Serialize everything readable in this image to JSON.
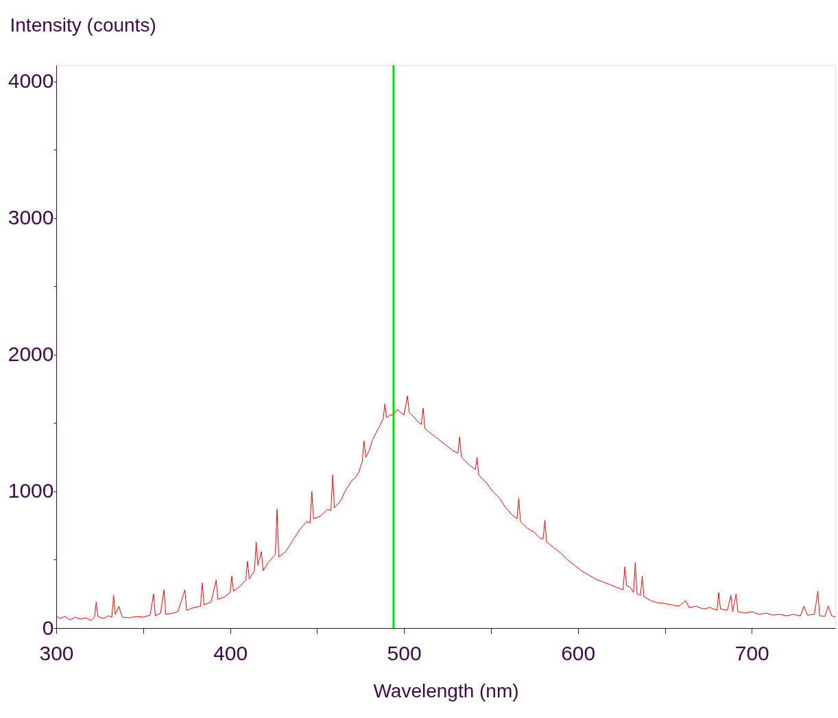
{
  "chart_data": {
    "type": "line",
    "ylabel": "Intensity (counts)",
    "xlabel": "Wavelength (nm)",
    "xlim": [
      300,
      748
    ],
    "ylim": [
      0,
      4120
    ],
    "xticks": [
      300,
      {
        "value": 350,
        "label": null
      },
      400,
      {
        "value": 450,
        "label": null
      },
      500,
      {
        "value": 550,
        "label": null
      },
      600,
      {
        "value": 650,
        "label": null
      },
      700
    ],
    "yticks": [
      0,
      {
        "value": 500,
        "label": null
      },
      1000,
      {
        "value": 1500,
        "label": null
      },
      2000,
      {
        "value": 2500,
        "label": null
      },
      3000,
      {
        "value": 3500,
        "label": null
      },
      4000
    ],
    "grid": false,
    "marker": "none",
    "line_style": "solid",
    "ref_lines": [
      {
        "axis": "x",
        "value": 494,
        "color": "#00e000"
      }
    ],
    "series": [
      {
        "color": "#ff0000",
        "x": [
          300,
          302,
          305,
          308,
          311,
          314,
          317,
          320,
          322,
          323,
          324,
          327,
          330,
          332,
          333,
          334,
          336,
          338,
          342,
          346,
          350,
          354,
          356,
          357,
          360,
          362,
          363,
          367,
          370,
          374,
          375,
          379,
          383,
          384,
          385,
          389,
          392,
          393,
          397,
          400,
          401,
          402,
          406,
          409,
          410,
          411,
          414,
          415,
          416,
          418,
          419,
          422,
          426,
          427,
          428,
          432,
          436,
          440,
          444,
          446,
          447,
          448,
          452,
          456,
          458,
          459,
          460,
          464,
          466,
          468,
          470,
          472,
          474,
          476,
          477,
          478,
          480,
          482,
          484,
          486,
          488,
          489,
          490,
          492,
          494,
          496,
          498,
          500,
          502,
          503,
          506,
          508,
          510,
          511,
          512,
          516,
          520,
          524,
          528,
          531,
          532,
          533,
          537,
          541,
          542,
          543,
          547,
          551,
          555,
          558,
          562,
          565,
          566,
          567,
          571,
          575,
          578,
          580,
          581,
          582,
          586,
          590,
          594,
          598,
          602,
          606,
          610,
          614,
          618,
          622,
          626,
          627,
          628,
          630,
          632,
          633,
          634,
          636,
          637,
          638,
          642,
          646,
          650,
          654,
          658,
          662,
          664,
          668,
          672,
          676,
          680,
          681,
          682,
          686,
          688,
          689,
          691,
          692,
          696,
          700,
          704,
          708,
          712,
          716,
          720,
          724,
          728,
          730,
          732,
          736,
          738,
          739,
          742,
          744,
          746,
          748
        ],
        "values": [
          90,
          70,
          85,
          60,
          80,
          65,
          75,
          55,
          80,
          190,
          85,
          70,
          90,
          80,
          240,
          100,
          160,
          80,
          75,
          85,
          80,
          95,
          250,
          90,
          110,
          280,
          100,
          110,
          120,
          280,
          130,
          150,
          160,
          330,
          170,
          190,
          350,
          210,
          230,
          260,
          380,
          270,
          310,
          350,
          490,
          360,
          420,
          630,
          460,
          560,
          420,
          480,
          540,
          870,
          520,
          560,
          640,
          720,
          780,
          770,
          1000,
          800,
          820,
          870,
          860,
          1120,
          880,
          940,
          1000,
          1040,
          1080,
          1100,
          1140,
          1220,
          1370,
          1250,
          1300,
          1380,
          1430,
          1480,
          1530,
          1640,
          1540,
          1560,
          1560,
          1600,
          1580,
          1560,
          1700,
          1580,
          1540,
          1510,
          1490,
          1610,
          1460,
          1420,
          1380,
          1340,
          1300,
          1280,
          1400,
          1250,
          1200,
          1160,
          1250,
          1120,
          1070,
          1000,
          950,
          890,
          830,
          800,
          950,
          780,
          730,
          700,
          660,
          650,
          790,
          630,
          590,
          550,
          500,
          460,
          420,
          390,
          360,
          340,
          320,
          300,
          280,
          450,
          310,
          300,
          260,
          480,
          250,
          240,
          380,
          230,
          200,
          185,
          180,
          170,
          160,
          200,
          150,
          160,
          140,
          150,
          130,
          260,
          140,
          130,
          240,
          120,
          250,
          120,
          110,
          120,
          100,
          110,
          95,
          100,
          90,
          100,
          90,
          160,
          95,
          100,
          270,
          90,
          85,
          160,
          90,
          80
        ]
      }
    ]
  }
}
